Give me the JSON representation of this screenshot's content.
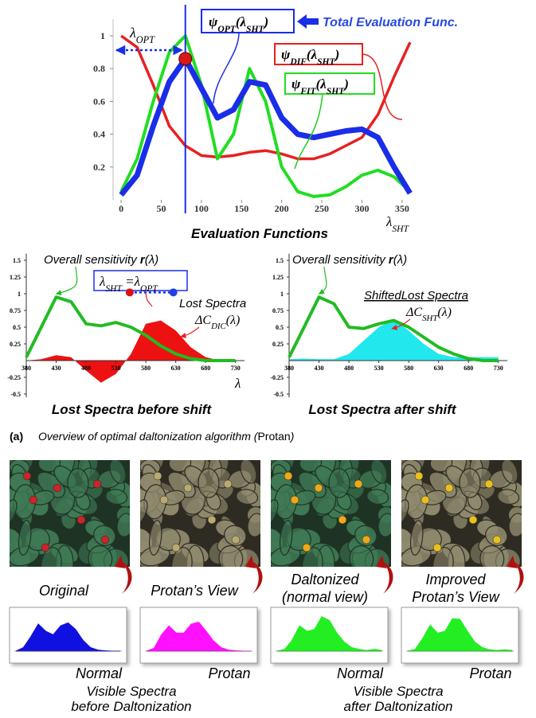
{
  "top_chart": {
    "type": "line",
    "x": [
      0,
      20,
      40,
      60,
      80,
      100,
      120,
      140,
      160,
      180,
      200,
      220,
      240,
      260,
      280,
      300,
      320,
      340,
      360
    ],
    "xlim": [
      -10,
      370
    ],
    "xticks": [
      0,
      50,
      100,
      150,
      200,
      250,
      300,
      350
    ],
    "ylim": [
      0,
      1.1
    ],
    "yticks": [
      0.2,
      0.4,
      0.6,
      0.8,
      1
    ],
    "series": [
      {
        "name": [
          {
            "text": "ψ"
          },
          {
            "text": "OPT",
            "sub": true
          },
          {
            "text": "(λ"
          },
          {
            "text": "SHT",
            "sub": true
          },
          {
            "text": ")"
          }
        ],
        "color": "#1a2ee8",
        "values": [
          0.03,
          0.15,
          0.45,
          0.72,
          0.86,
          0.68,
          0.5,
          0.55,
          0.72,
          0.7,
          0.5,
          0.4,
          0.38,
          0.4,
          0.42,
          0.43,
          0.38,
          0.2,
          0.04
        ]
      },
      {
        "name": [
          {
            "text": "ψ"
          },
          {
            "text": "DIF",
            "sub": true
          },
          {
            "text": "(λ"
          },
          {
            "text": "SHT",
            "sub": true
          },
          {
            "text": ")"
          }
        ],
        "color": "#e82020",
        "values": [
          1.0,
          0.93,
          0.7,
          0.45,
          0.33,
          0.27,
          0.26,
          0.27,
          0.29,
          0.3,
          0.28,
          0.25,
          0.25,
          0.28,
          0.33,
          0.38,
          0.52,
          0.75,
          0.96
        ]
      },
      {
        "name": [
          {
            "text": "ψ"
          },
          {
            "text": "FIT",
            "sub": true
          },
          {
            "text": "(λ"
          },
          {
            "text": "SHT",
            "sub": true
          },
          {
            "text": ")"
          }
        ],
        "color": "#22dd22",
        "values": [
          0.05,
          0.25,
          0.6,
          0.9,
          1.0,
          0.7,
          0.25,
          0.4,
          0.8,
          0.6,
          0.2,
          0.05,
          0.02,
          0.03,
          0.08,
          0.15,
          0.18,
          0.14,
          0.05
        ]
      }
    ],
    "opt_x": 80,
    "opt_label": [
      {
        "text": "λ"
      },
      {
        "text": "OPT",
        "sub": true
      }
    ],
    "total_label": "Total Evaluation Func.",
    "x_label": [
      {
        "text": "λ"
      },
      {
        "text": "SHT",
        "sub": true
      }
    ],
    "caption": "Evaluation Functions"
  },
  "spectra_charts": [
    {
      "type": "line-area",
      "x": [
        380,
        405,
        430,
        455,
        480,
        505,
        530,
        555,
        580,
        605,
        630,
        655,
        680,
        705,
        730
      ],
      "xlim": [
        380,
        745
      ],
      "xticks": [
        380,
        430,
        480,
        530,
        580,
        630,
        680,
        730
      ],
      "ylim": [
        -0.55,
        1.6
      ],
      "yticks": [
        -0.5,
        -0.25,
        0.25,
        0.5,
        0.75,
        1,
        1.25,
        1.5
      ],
      "sensitivity": {
        "name": [
          {
            "text": "Overall sensitivity "
          },
          {
            "text": "r",
            "bold": true
          },
          {
            "text": "(λ)"
          }
        ],
        "color": "#22bb22",
        "values": [
          0.05,
          0.5,
          0.95,
          0.88,
          0.55,
          0.52,
          0.57,
          0.5,
          0.38,
          0.22,
          0.1,
          0.03,
          0,
          0,
          0
        ]
      },
      "lost": {
        "name": "Lost Spectra",
        "underline": false,
        "formula": [
          {
            "text": "ΔC"
          },
          {
            "text": "DIC",
            "sub": true
          },
          {
            "text": "(λ)"
          }
        ],
        "color": "#ee1111",
        "values": [
          0,
          0.02,
          0.08,
          0.05,
          -0.15,
          -0.33,
          -0.2,
          0.1,
          0.55,
          0.6,
          0.45,
          0.2,
          0.05,
          0,
          0
        ]
      },
      "eq_label": [
        {
          "text": "λ"
        },
        {
          "text": "SHT",
          "sub": true
        },
        {
          "text": " =λ"
        },
        {
          "text": "OPT",
          "sub": true
        }
      ],
      "shift_marker": {
        "from": 553,
        "to": 626,
        "y": 1.02
      },
      "x_label": "λ",
      "caption": "Lost Spectra before shift"
    },
    {
      "type": "line-area",
      "x": [
        380,
        405,
        430,
        455,
        480,
        505,
        530,
        555,
        580,
        605,
        630,
        655,
        680,
        705,
        730
      ],
      "xlim": [
        380,
        745
      ],
      "xticks": [
        380,
        430,
        480,
        530,
        580,
        630,
        680,
        730
      ],
      "ylim": [
        -0.55,
        1.6
      ],
      "yticks": [
        -0.5,
        -0.25,
        0.25,
        0.5,
        0.75,
        1,
        1.25,
        1.5
      ],
      "sensitivity": {
        "name": [
          {
            "text": "Overall sensitivity "
          },
          {
            "text": "r",
            "bold": true
          },
          {
            "text": "(λ)"
          }
        ],
        "color": "#22bb22",
        "values": [
          0.05,
          0.5,
          0.95,
          0.85,
          0.5,
          0.48,
          0.55,
          0.6,
          0.5,
          0.35,
          0.2,
          0.1,
          0.03,
          0,
          0
        ]
      },
      "lost": {
        "name": "ShiftedLost Spectra",
        "underline": true,
        "formula": [
          {
            "text": "ΔC"
          },
          {
            "text": "SHT",
            "sub": true
          },
          {
            "text": "(λ)"
          }
        ],
        "color": "#22e8ee",
        "values": [
          0.02,
          0.03,
          0.02,
          0.02,
          0.1,
          0.3,
          0.5,
          0.62,
          0.45,
          0.25,
          0.1,
          0.05,
          0.05,
          0.05,
          0.05
        ]
      },
      "caption": "Lost Spectra after shift"
    }
  ],
  "overview": {
    "label": "(a)",
    "parts": [
      {
        "text": "Overview of optimal daltonization algorithm ("
      },
      {
        "text": "Protan",
        "upright": true
      },
      {
        "text": ")"
      }
    ]
  },
  "photos": [
    {
      "label": [
        "Original"
      ],
      "background": "#1f3325",
      "leaf": "#3f7a55",
      "berry": "#c8262a"
    },
    {
      "label": [
        "Protan’s View"
      ],
      "background": "#2e2c22",
      "leaf": "#8f8a6e",
      "berry": "#b8aa70"
    },
    {
      "label": [
        "Daltonized",
        "(normal view)"
      ],
      "background": "#1f3325",
      "leaf": "#3f7a55",
      "berry": "#f0a818"
    },
    {
      "label": [
        "Improved",
        "Protan’s View"
      ],
      "background": "#2e2c22",
      "leaf": "#8f8a6e",
      "berry": "#e8c020"
    }
  ],
  "mini_spectra": {
    "x": [
      380,
      405,
      430,
      455,
      480,
      505,
      530,
      555,
      580,
      605,
      630,
      655,
      680,
      705,
      730
    ],
    "ylim": [
      0,
      1.1
    ],
    "charts": [
      {
        "label": "Normal",
        "color": "#1010e0",
        "values": [
          0,
          0.1,
          0.4,
          0.75,
          0.55,
          0.45,
          0.7,
          0.78,
          0.6,
          0.3,
          0.1,
          0.03,
          0.01,
          0,
          0
        ]
      },
      {
        "label": "Protan",
        "color": "#ff10ff",
        "values": [
          0,
          0.08,
          0.45,
          0.7,
          0.5,
          0.5,
          0.75,
          0.8,
          0.55,
          0.28,
          0.1,
          0.03,
          0.01,
          0,
          0
        ]
      },
      {
        "label": "Normal",
        "color": "#22ee22",
        "values": [
          0,
          0.05,
          0.3,
          0.7,
          0.55,
          0.6,
          0.95,
          0.85,
          0.5,
          0.25,
          0.1,
          0.05,
          0.02,
          0.05,
          0.02
        ]
      },
      {
        "label": "Protan",
        "color": "#22ee22",
        "values": [
          0,
          0.05,
          0.35,
          0.72,
          0.5,
          0.55,
          0.9,
          0.88,
          0.55,
          0.25,
          0.1,
          0.04,
          0.02,
          0.04,
          0.02
        ]
      }
    ],
    "captions": [
      [
        "Visible Spectra",
        "before Daltonization"
      ],
      [
        "Visible Spectra",
        "after Daltonization"
      ]
    ]
  }
}
